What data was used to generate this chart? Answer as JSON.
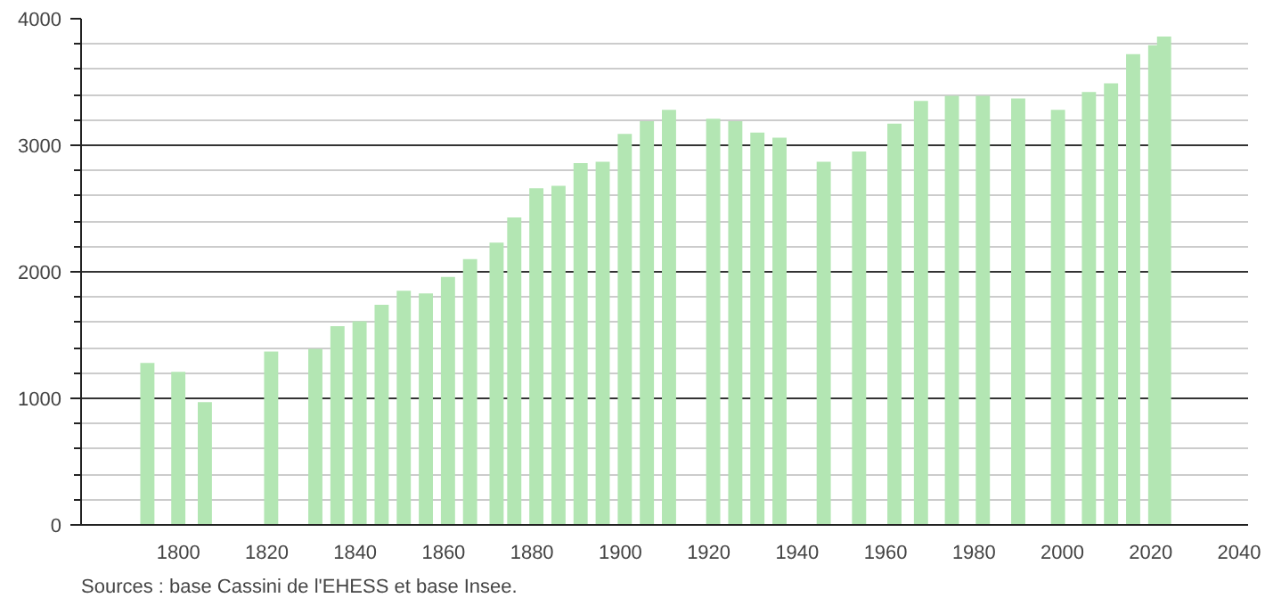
{
  "chart_data": {
    "type": "bar",
    "x": [
      1793,
      1800,
      1806,
      1821,
      1831,
      1836,
      1841,
      1846,
      1851,
      1856,
      1861,
      1866,
      1872,
      1876,
      1881,
      1886,
      1891,
      1896,
      1901,
      1906,
      1911,
      1921,
      1926,
      1931,
      1936,
      1946,
      1954,
      1962,
      1968,
      1975,
      1982,
      1990,
      1999,
      2006,
      2011,
      2016,
      2021,
      2023
    ],
    "values": [
      1280,
      1210,
      970,
      1370,
      1390,
      1570,
      1610,
      1740,
      1850,
      1830,
      1960,
      2100,
      2230,
      2430,
      2660,
      2680,
      2860,
      2870,
      3090,
      3190,
      3280,
      3210,
      3190,
      3100,
      3060,
      2870,
      2950,
      3170,
      3350,
      3390,
      3390,
      3370,
      3280,
      3420,
      3490,
      3720,
      3790,
      3860
    ],
    "color": "#b3e6b3",
    "xlim": [
      1778,
      2042
    ],
    "xticks": [
      1800,
      1820,
      1840,
      1860,
      1880,
      1900,
      1920,
      1940,
      1960,
      1980,
      2000,
      2020,
      2040
    ],
    "ylim": [
      0,
      4000
    ],
    "yticks": [
      0,
      1000,
      2000,
      3000,
      4000
    ],
    "grid": "y",
    "annotations": [
      "Sources : base Cassini de l'EHESS et base Insee."
    ]
  }
}
